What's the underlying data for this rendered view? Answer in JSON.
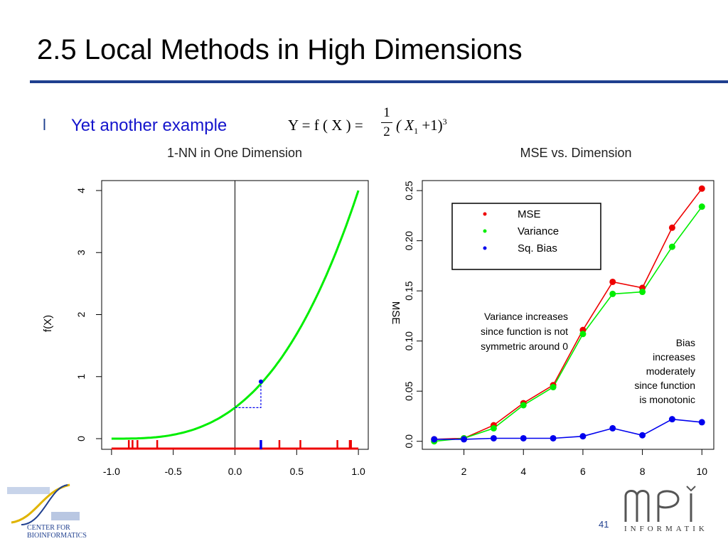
{
  "slide": {
    "title": "2.5 Local Methods in High Dimensions",
    "bullet_mark": "l",
    "bullet_text": "Yet another example",
    "formula": {
      "lhs": "Y = f ( X ) =",
      "frac_num": "1",
      "frac_den": "2",
      "rhs_open": "( X",
      "rhs_sub": "1",
      "rhs_close": " +1)",
      "rhs_sup": "3"
    },
    "page_number": "41",
    "logo_left_line1": "CENTER FOR",
    "logo_left_line2": "BIOINFORMATICS",
    "logo_right_text": "INFORMATIK"
  },
  "chart_data": [
    {
      "type": "line",
      "title": "1-NN in One Dimension",
      "xlabel": "",
      "ylabel": "f(X)",
      "xlim": [
        -1.0,
        1.0
      ],
      "ylim": [
        0,
        4
      ],
      "xticks": [
        "-1.0",
        "-0.5",
        "0.0",
        "0.5",
        "1.0"
      ],
      "yticks": [
        "0",
        "1",
        "2",
        "3",
        "4"
      ],
      "series": [
        {
          "color": "#00ee00",
          "x": [
            -1.0,
            -0.9,
            -0.8,
            -0.7,
            -0.6,
            -0.5,
            -0.4,
            -0.3,
            -0.2,
            -0.1,
            0.0,
            0.1,
            0.2,
            0.3,
            0.4,
            0.5,
            0.6,
            0.7,
            0.8,
            0.9,
            1.0
          ],
          "y": [
            0.0,
            0.0005,
            0.004,
            0.0135,
            0.032,
            0.0625,
            0.108,
            0.1715,
            0.256,
            0.3645,
            0.5,
            0.6655,
            0.864,
            1.0985,
            1.372,
            1.6875,
            2.048,
            2.4565,
            2.916,
            3.4295,
            4.0
          ]
        }
      ],
      "vline_x": 0.0,
      "nearest_point": {
        "x": 0.21,
        "y": 0.92,
        "color": "#0000ee"
      },
      "dashed_guide": {
        "from_x": 0.0,
        "y_level": 0.5,
        "to_x": 0.21,
        "to_y": 0.92
      },
      "rug_red": [
        -0.86,
        -0.83,
        -0.79,
        -0.63,
        0.36,
        0.53,
        0.83,
        0.93,
        0.94
      ],
      "rug_blue": [
        0.21
      ]
    },
    {
      "type": "line",
      "title": "MSE  vs. Dimension",
      "xlabel": "",
      "ylabel": "MSE",
      "xlim": [
        0.6,
        10.4
      ],
      "ylim": [
        -0.008,
        0.26
      ],
      "xticks": [
        "2",
        "4",
        "6",
        "8",
        "10"
      ],
      "yticks": [
        "0.0",
        "0.05",
        "0.10",
        "0.15",
        "0.20",
        "0.25"
      ],
      "legend": {
        "position": "top-left",
        "entries": [
          "MSE",
          "Variance",
          "Sq. Bias"
        ]
      },
      "x": [
        1,
        2,
        3,
        4,
        5,
        6,
        7,
        8,
        9,
        10
      ],
      "series": [
        {
          "name": "MSE",
          "color": "#ee0000",
          "values": [
            0.002,
            0.003,
            0.016,
            0.038,
            0.056,
            0.111,
            0.159,
            0.153,
            0.213,
            0.252
          ]
        },
        {
          "name": "Variance",
          "color": "#00ee00",
          "values": [
            0.0,
            0.003,
            0.013,
            0.036,
            0.054,
            0.107,
            0.147,
            0.149,
            0.194,
            0.234
          ]
        },
        {
          "name": "Sq. Bias",
          "color": "#0000ee",
          "values": [
            0.002,
            0.002,
            0.003,
            0.003,
            0.003,
            0.005,
            0.013,
            0.006,
            0.022,
            0.019
          ]
        }
      ],
      "annotations": [
        "Variance increases",
        "since function is not",
        "symmetric around 0",
        "Bias",
        "increases",
        "moderately",
        "since function",
        "is monotonic"
      ]
    }
  ]
}
